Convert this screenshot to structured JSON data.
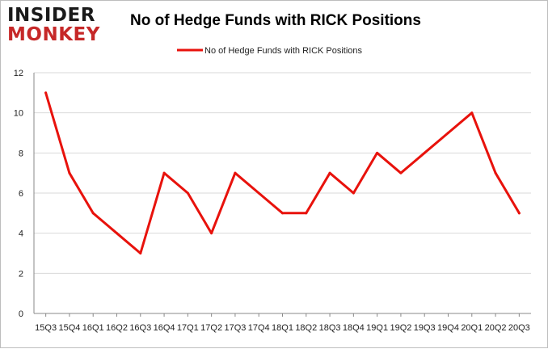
{
  "logo": {
    "line1": "INSIDER",
    "line2": "MONKEY"
  },
  "chart_data": {
    "type": "line",
    "title": "No of Hedge Funds with RICK Positions",
    "xlabel": "",
    "ylabel": "",
    "categories": [
      "15Q3",
      "15Q4",
      "16Q1",
      "16Q2",
      "16Q3",
      "16Q4",
      "17Q1",
      "17Q2",
      "17Q3",
      "17Q4",
      "18Q1",
      "18Q2",
      "18Q3",
      "18Q4",
      "19Q1",
      "19Q2",
      "19Q3",
      "19Q4",
      "20Q1",
      "20Q2",
      "20Q3"
    ],
    "series": [
      {
        "name": "No of Hedge Funds with RICK Positions",
        "values": [
          11,
          7,
          5,
          4,
          3,
          7,
          6,
          4,
          7,
          6,
          5,
          5,
          7,
          6,
          8,
          7,
          8,
          9,
          10,
          7,
          5
        ],
        "color": "#e8120c"
      }
    ],
    "ylim": [
      0,
      12
    ],
    "yticks": [
      0,
      2,
      4,
      6,
      8,
      10,
      12
    ],
    "grid": true,
    "legend": "top-center"
  }
}
